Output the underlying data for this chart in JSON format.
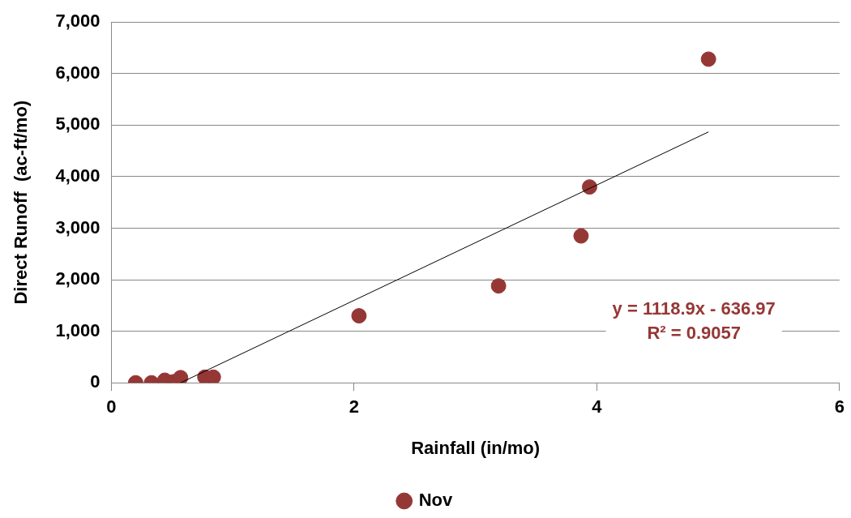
{
  "chart_data": {
    "type": "scatter",
    "xlabel": "Rainfall (in/mo)",
    "ylabel": "Direct Runoff  (ac-ft/mo)",
    "series": [
      {
        "name": "Nov",
        "color": "#953735",
        "x": [
          0.2,
          0.33,
          0.44,
          0.51,
          0.57,
          0.77,
          0.84,
          2.04,
          3.19,
          3.87,
          3.94,
          4.92
        ],
        "values": [
          0,
          0,
          50,
          20,
          100,
          110,
          110,
          1300,
          1880,
          2850,
          3800,
          6280
        ]
      },
      {
        "type": "line",
        "color": "#000000",
        "x": [
          0.57,
          4.92
        ],
        "values": [
          0,
          4868
        ],
        "marker": "none"
      }
    ],
    "xlim": [
      0,
      6
    ],
    "xticks": [
      0,
      2,
      4,
      6
    ],
    "ylim": [
      0,
      7000
    ],
    "yticks": [
      {
        "value": 0,
        "label": "0"
      },
      {
        "value": 1000,
        "label": "1,000"
      },
      {
        "value": 2000,
        "label": "2,000"
      },
      {
        "value": 3000,
        "label": "3,000"
      },
      {
        "value": 4000,
        "label": "4,000"
      },
      {
        "value": 5000,
        "label": "5,000"
      },
      {
        "value": 6000,
        "label": "6,000"
      },
      {
        "value": 7000,
        "label": "7,000"
      }
    ],
    "grid": "y",
    "legend": "bottom",
    "marker": "circle",
    "annotations": [
      "y = 1118.9x - 636.97",
      "R² = 0.9057"
    ]
  }
}
